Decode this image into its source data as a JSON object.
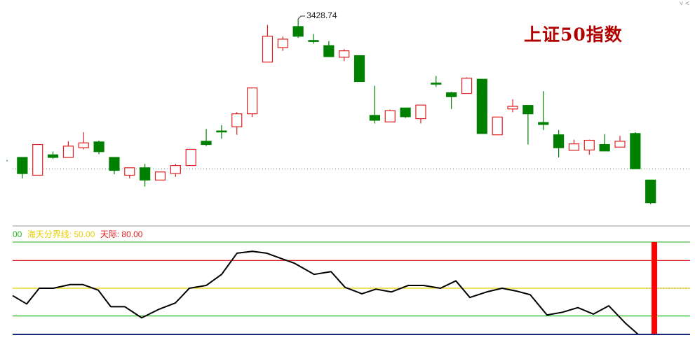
{
  "chart_data": [
    {
      "type": "candlestick",
      "title": "上证50指数",
      "ylim": [
        2800,
        3500
      ],
      "max_annotation": "3428.74",
      "reference_line": 2965,
      "candles": [
        {
          "o": 2990,
          "c": 2990,
          "h": 2992,
          "l": 2988,
          "dir": "down"
        },
        {
          "o": 3000,
          "c": 2950,
          "h": 3000,
          "l": 2935,
          "dir": "down"
        },
        {
          "o": 2945,
          "c": 3040,
          "h": 3040,
          "l": 2945,
          "dir": "up"
        },
        {
          "o": 3008,
          "c": 3000,
          "h": 3018,
          "l": 2995,
          "dir": "down"
        },
        {
          "o": 3000,
          "c": 3035,
          "h": 3050,
          "l": 3000,
          "dir": "up"
        },
        {
          "o": 3030,
          "c": 3045,
          "h": 3078,
          "l": 3025,
          "dir": "up"
        },
        {
          "o": 3048,
          "c": 3018,
          "h": 3052,
          "l": 3010,
          "dir": "down"
        },
        {
          "o": 3000,
          "c": 2960,
          "h": 3000,
          "l": 2948,
          "dir": "down"
        },
        {
          "o": 2968,
          "c": 2945,
          "h": 2968,
          "l": 2935,
          "dir": "up"
        },
        {
          "o": 2968,
          "c": 2930,
          "h": 2980,
          "l": 2910,
          "dir": "down"
        },
        {
          "o": 2930,
          "c": 2955,
          "h": 2955,
          "l": 2930,
          "dir": "up"
        },
        {
          "o": 2950,
          "c": 2975,
          "h": 2980,
          "l": 2940,
          "dir": "up"
        },
        {
          "o": 2975,
          "c": 3025,
          "h": 3025,
          "l": 2975,
          "dir": "up"
        },
        {
          "o": 3050,
          "c": 3040,
          "h": 3088,
          "l": 3035,
          "dir": "down"
        },
        {
          "o": 3082,
          "c": 3082,
          "h": 3100,
          "l": 3058,
          "dir": "down"
        },
        {
          "o": 3095,
          "c": 3135,
          "h": 3140,
          "l": 3070,
          "dir": "up"
        },
        {
          "o": 3135,
          "c": 3215,
          "h": 3215,
          "l": 3125,
          "dir": "up"
        },
        {
          "o": 3295,
          "c": 3375,
          "h": 3410,
          "l": 3295,
          "dir": "up"
        },
        {
          "o": 3340,
          "c": 3366,
          "h": 3374,
          "l": 3330,
          "dir": "up"
        },
        {
          "o": 3405,
          "c": 3375,
          "h": 3428.74,
          "l": 3370,
          "dir": "down"
        },
        {
          "o": 3362,
          "c": 3362,
          "h": 3382,
          "l": 3352,
          "dir": "down"
        },
        {
          "o": 3346,
          "c": 3312,
          "h": 3360,
          "l": 3312,
          "dir": "down"
        },
        {
          "o": 3310,
          "c": 3330,
          "h": 3335,
          "l": 3298,
          "dir": "up"
        },
        {
          "o": 3315,
          "c": 3235,
          "h": 3315,
          "l": 3235,
          "dir": "down"
        },
        {
          "o": 3130,
          "c": 3115,
          "h": 3222,
          "l": 3105,
          "dir": "down"
        },
        {
          "o": 3110,
          "c": 3145,
          "h": 3148,
          "l": 3110,
          "dir": "up"
        },
        {
          "o": 3153,
          "c": 3126,
          "h": 3153,
          "l": 3122,
          "dir": "down"
        },
        {
          "o": 3120,
          "c": 3162,
          "h": 3162,
          "l": 3105,
          "dir": "up"
        },
        {
          "o": 3230,
          "c": 3230,
          "h": 3252,
          "l": 3218,
          "dir": "down"
        },
        {
          "o": 3200,
          "c": 3188,
          "h": 3203,
          "l": 3150,
          "dir": "down"
        },
        {
          "o": 3198,
          "c": 3245,
          "h": 3248,
          "l": 3198,
          "dir": "up"
        },
        {
          "o": 3242,
          "c": 3074,
          "h": 3242,
          "l": 3074,
          "dir": "down"
        },
        {
          "o": 3070,
          "c": 3125,
          "h": 3125,
          "l": 3070,
          "dir": "up"
        },
        {
          "o": 3150,
          "c": 3158,
          "h": 3180,
          "l": 3140,
          "dir": "up"
        },
        {
          "o": 3161,
          "c": 3135,
          "h": 3161,
          "l": 3040,
          "dir": "down"
        },
        {
          "o": 3108,
          "c": 3102,
          "h": 3205,
          "l": 3085,
          "dir": "down"
        },
        {
          "o": 3070,
          "c": 3030,
          "h": 3085,
          "l": 3000,
          "dir": "down"
        },
        {
          "o": 3022,
          "c": 3042,
          "h": 3055,
          "l": 3022,
          "dir": "up"
        },
        {
          "o": 3023,
          "c": 3053,
          "h": 3055,
          "l": 3008,
          "dir": "up"
        },
        {
          "o": 3040,
          "c": 3020,
          "h": 3072,
          "l": 3020,
          "dir": "down"
        },
        {
          "o": 3032,
          "c": 3050,
          "h": 3067,
          "l": 3032,
          "dir": "up"
        },
        {
          "o": 3074,
          "c": 2965,
          "h": 3078,
          "l": 2965,
          "dir": "down"
        },
        {
          "o": 2930,
          "c": 2860,
          "h": 2930,
          "l": 2855,
          "dir": "down"
        }
      ]
    },
    {
      "type": "line",
      "ylim": [
        0,
        100
      ],
      "legend": [
        {
          "label": "00",
          "color": "#22bb22"
        },
        {
          "label": "海天分界线: 50.00",
          "color": "#e8d000"
        },
        {
          "label": "天际: 80.00",
          "color": "#e02020"
        }
      ],
      "hlines": [
        {
          "value": 80,
          "color": "#e02020"
        },
        {
          "value": 50,
          "color": "#e8d000"
        },
        {
          "value": 20,
          "color": "#22bb22"
        }
      ],
      "x": [
        0,
        20,
        38,
        58,
        82,
        100,
        122,
        140,
        160,
        184,
        208,
        232,
        252,
        276,
        298,
        320,
        342,
        362,
        380,
        402,
        430,
        454,
        474,
        498,
        518,
        540,
        564,
        586,
        610,
        632,
        652,
        676,
        698,
        718,
        738,
        762,
        784,
        806,
        828,
        850,
        874,
        892,
        914
      ],
      "values": [
        42,
        33,
        50,
        50,
        54,
        54,
        48,
        30,
        30,
        18,
        27,
        34,
        50,
        53,
        65,
        88,
        90,
        88,
        83,
        77,
        65,
        68,
        51,
        44,
        49,
        46,
        53,
        53,
        50,
        58,
        40,
        46,
        50,
        47,
        43,
        21,
        24,
        29,
        22,
        31,
        12,
        0,
        0
      ],
      "marker_value": 100,
      "marker_color": "#ff0000"
    }
  ]
}
